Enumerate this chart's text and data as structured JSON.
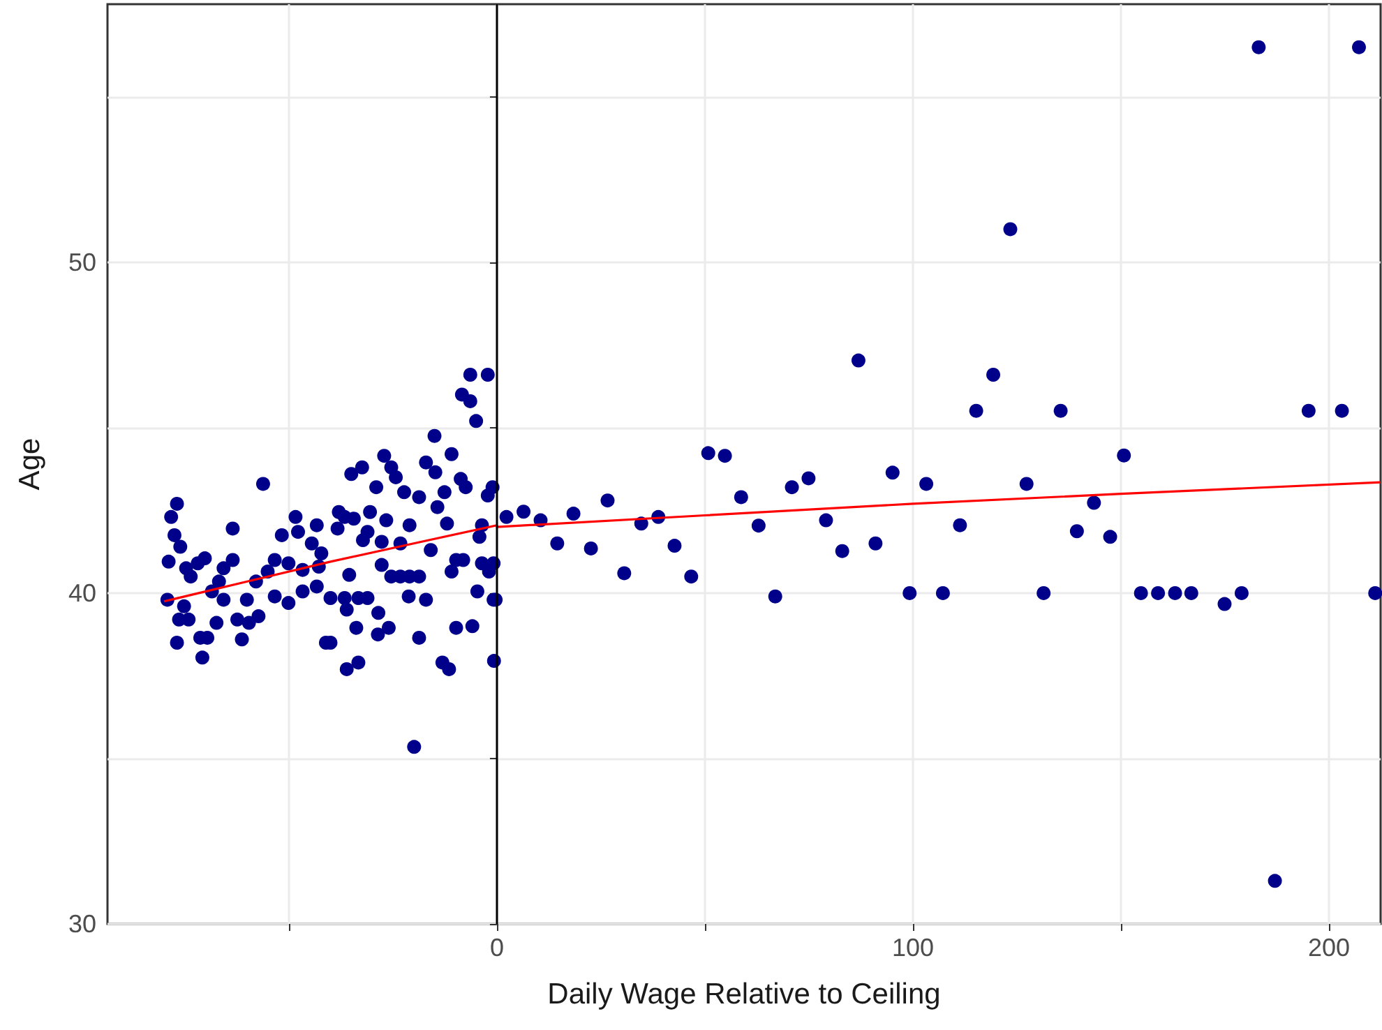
{
  "chart_data": {
    "type": "scatter",
    "xlabel": "Daily Wage Relative to Ceiling",
    "ylabel": "Age",
    "xlim": [
      -93.6,
      212.4
    ],
    "xticks": [
      {
        "value": -50,
        "label": null
      },
      0,
      {
        "value": 50,
        "label": null
      },
      100,
      {
        "value": 150,
        "label": null
      },
      200
    ],
    "ylim": [
      30,
      57.8
    ],
    "yticks": [
      30,
      {
        "value": 35,
        "label": null
      },
      40,
      {
        "value": 45,
        "label": null
      },
      50,
      {
        "value": 55,
        "label": null
      }
    ],
    "grid": true,
    "marker": "circle",
    "ref_lines": [
      {
        "axis": "x",
        "value": 0,
        "color": "#000000"
      }
    ],
    "series": [
      {
        "color": "#00008b",
        "x": [
          -6.4,
          -2.2,
          -8.4,
          -6.4,
          -5.0,
          -15.0,
          -10.9,
          -56.2,
          -76.9,
          -78.3,
          -77.5,
          -76.1,
          -78.9,
          -63.5,
          -35.0,
          -32.4,
          -27.1,
          -25.4,
          -24.3,
          -29.0,
          -22.3,
          -18.7,
          -17.05,
          -14.8,
          -12.6,
          -8.7,
          -7.5,
          -1.05,
          -2.2,
          2.3,
          -14.3,
          -12.0,
          -15.9,
          -3.6,
          -4.2,
          -9.8,
          -8.1,
          -10.9,
          -3.6,
          -0.8,
          -1.9,
          -4.7,
          -0.8,
          -0.3,
          -9.8,
          -5.9,
          -13.1,
          -11.5,
          -0.7,
          -19.9,
          -18.7,
          -17.05,
          -21.2,
          -25.4,
          -23.2,
          -21.0,
          -18.7,
          -27.7,
          -27.7,
          -23.2,
          -21.0,
          -26.6,
          -30.5,
          -31.1,
          -32.2,
          -36.6,
          -38.0,
          -38.3,
          -34.4,
          -35.5,
          -40.0,
          -36.6,
          -33.3,
          -31.1,
          -36.1,
          -33.8,
          -28.5,
          -26.0,
          -28.6,
          -33.3,
          -36.1,
          -40.0,
          -43.3,
          -48.4,
          -47.8,
          -51.7,
          -44.5,
          -42.2,
          -42.8,
          -46.7,
          -50.1,
          -53.4,
          -55.1,
          -46.7,
          -43.3,
          -50.1,
          -53.4,
          -57.9,
          -57.3,
          -59.6,
          -61.3,
          -62.4,
          -60.1,
          -65.7,
          -66.8,
          -70.2,
          -71.9,
          -74.7,
          -73.6,
          -68.5,
          -63.5,
          -65.7,
          -79.2,
          -75.2,
          -74.1,
          -76.4,
          -67.4,
          -76.9,
          -71.3,
          -69.6,
          -70.8,
          -41.1,
          6.4,
          10.5,
          14.5,
          18.4,
          22.6,
          26.6,
          30.6,
          34.7,
          38.8,
          42.7,
          46.7,
          50.8,
          54.8,
          58.7,
          62.9,
          66.9,
          70.9,
          74.9,
          79.1,
          83.0,
          86.9,
          91.0,
          95.1,
          99.2,
          103.2,
          107.2,
          111.3,
          115.2,
          119.3,
          123.4,
          127.3,
          131.4,
          135.5,
          139.4,
          143.5,
          147.4,
          150.7,
          154.8,
          158.9,
          163.0,
          166.9,
          174.9,
          179.0,
          183.1,
          187.0,
          195.1,
          203.1,
          207.2,
          211.1
        ],
        "values": [
          46.6,
          46.6,
          46.0,
          45.8,
          45.2,
          44.75,
          44.2,
          43.3,
          42.7,
          42.3,
          41.75,
          41.4,
          40.95,
          41.95,
          43.6,
          43.8,
          44.15,
          43.8,
          43.5,
          43.2,
          43.05,
          42.9,
          43.95,
          43.65,
          43.05,
          43.45,
          43.2,
          43.2,
          42.95,
          42.3,
          42.6,
          42.1,
          41.3,
          42.05,
          41.7,
          41.0,
          41.0,
          40.65,
          40.9,
          40.9,
          40.65,
          40.05,
          39.8,
          39.8,
          38.95,
          39.0,
          37.9,
          37.7,
          37.95,
          35.35,
          38.65,
          39.8,
          39.9,
          40.5,
          40.5,
          40.5,
          40.5,
          40.85,
          41.55,
          41.5,
          42.05,
          42.2,
          42.45,
          41.85,
          41.6,
          42.3,
          42.45,
          41.95,
          42.25,
          40.55,
          39.85,
          39.85,
          39.85,
          39.85,
          39.5,
          38.95,
          39.4,
          38.95,
          38.75,
          37.9,
          37.7,
          38.5,
          42.05,
          42.3,
          41.85,
          41.75,
          41.5,
          41.2,
          40.8,
          40.7,
          40.9,
          41.0,
          40.65,
          40.05,
          40.2,
          39.7,
          39.9,
          40.35,
          39.3,
          39.1,
          38.6,
          39.2,
          39.8,
          39.8,
          40.35,
          41.05,
          40.9,
          40.75,
          40.5,
          40.05,
          41.0,
          40.75,
          39.8,
          39.6,
          39.2,
          39.2,
          39.1,
          38.5,
          38.65,
          38.65,
          38.05,
          38.5,
          42.46,
          42.2,
          41.5,
          42.4,
          41.35,
          42.8,
          40.6,
          42.1,
          42.3,
          41.43,
          40.5,
          44.23,
          44.15,
          42.9,
          42.04,
          39.9,
          43.2,
          43.47,
          42.2,
          41.27,
          47.03,
          41.5,
          43.64,
          40.0,
          43.3,
          40.0,
          42.05,
          45.51,
          46.6,
          51.0,
          43.3,
          40.0,
          45.51,
          41.87,
          42.73,
          41.7,
          44.16,
          40.0,
          40.0,
          40.0,
          40.0,
          39.67,
          40.0,
          56.5,
          31.3,
          45.51,
          45.51,
          56.5,
          40.0
        ]
      },
      {
        "type": "line",
        "color": "#ff0000",
        "marker": "none",
        "x": [
          -80,
          -60,
          -40,
          -20,
          0,
          0,
          50,
          100,
          150,
          212.4
        ],
        "values": [
          39.75,
          40.35,
          40.95,
          41.5,
          42.05,
          42.0,
          42.35,
          42.7,
          43.0,
          43.35
        ]
      }
    ]
  }
}
